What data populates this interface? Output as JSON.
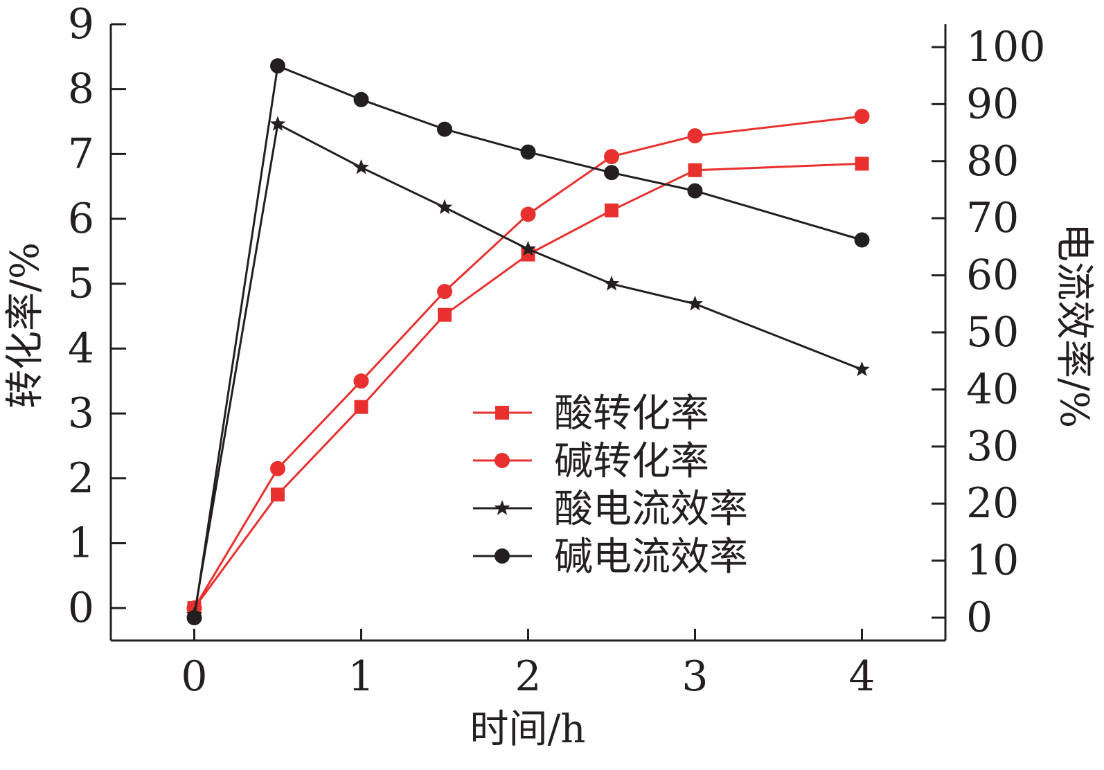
{
  "chart_data": {
    "type": "line",
    "x": [
      0,
      0.5,
      1,
      1.5,
      2,
      2.5,
      3,
      4
    ],
    "xlabel": "时间/h",
    "xlim": [
      -0.5,
      4.5
    ],
    "xticks": [
      0,
      1,
      2,
      3,
      4
    ],
    "xtick_labels": [
      "0",
      "1",
      "2",
      "3",
      "4"
    ],
    "ylabel_left": "转化率/%",
    "ylim_left": [
      -0.5,
      9
    ],
    "yticks_left": [
      0,
      1,
      2,
      3,
      4,
      5,
      6,
      7,
      8,
      9
    ],
    "ytick_labels_left": [
      "0",
      "1",
      "2",
      "3",
      "4",
      "5",
      "6",
      "7",
      "8",
      "9"
    ],
    "ylabel_right": "电流效率/%",
    "ylim_right": [
      -4,
      104
    ],
    "yticks_right": [
      0,
      10,
      20,
      30,
      40,
      50,
      60,
      70,
      80,
      90,
      100
    ],
    "ytick_labels_right": [
      "0",
      "10",
      "20",
      "30",
      "40",
      "50",
      "60",
      "70",
      "80",
      "90",
      "100"
    ],
    "grid": false,
    "legend_position": "center-right",
    "series": [
      {
        "name": "酸转化率",
        "axis": "left",
        "marker": "square",
        "color": "#e8312f",
        "values": [
          0.0,
          1.75,
          3.1,
          4.52,
          5.45,
          6.13,
          6.75,
          6.85
        ]
      },
      {
        "name": "碱转化率",
        "axis": "left",
        "marker": "circle",
        "color": "#e8312f",
        "values": [
          0.0,
          2.15,
          3.5,
          4.88,
          6.07,
          6.96,
          7.28,
          7.58
        ]
      },
      {
        "name": "酸电流效率",
        "axis": "right",
        "marker": "star",
        "color": "#231f20",
        "values": [
          0.5,
          86.5,
          78.9,
          71.9,
          64.6,
          58.5,
          55.0,
          43.5
        ]
      },
      {
        "name": "碱电流效率",
        "axis": "right",
        "marker": "circle",
        "color": "#231f20",
        "values": [
          0.0,
          96.7,
          90.8,
          85.6,
          81.6,
          78.0,
          74.8,
          66.2
        ]
      }
    ]
  }
}
